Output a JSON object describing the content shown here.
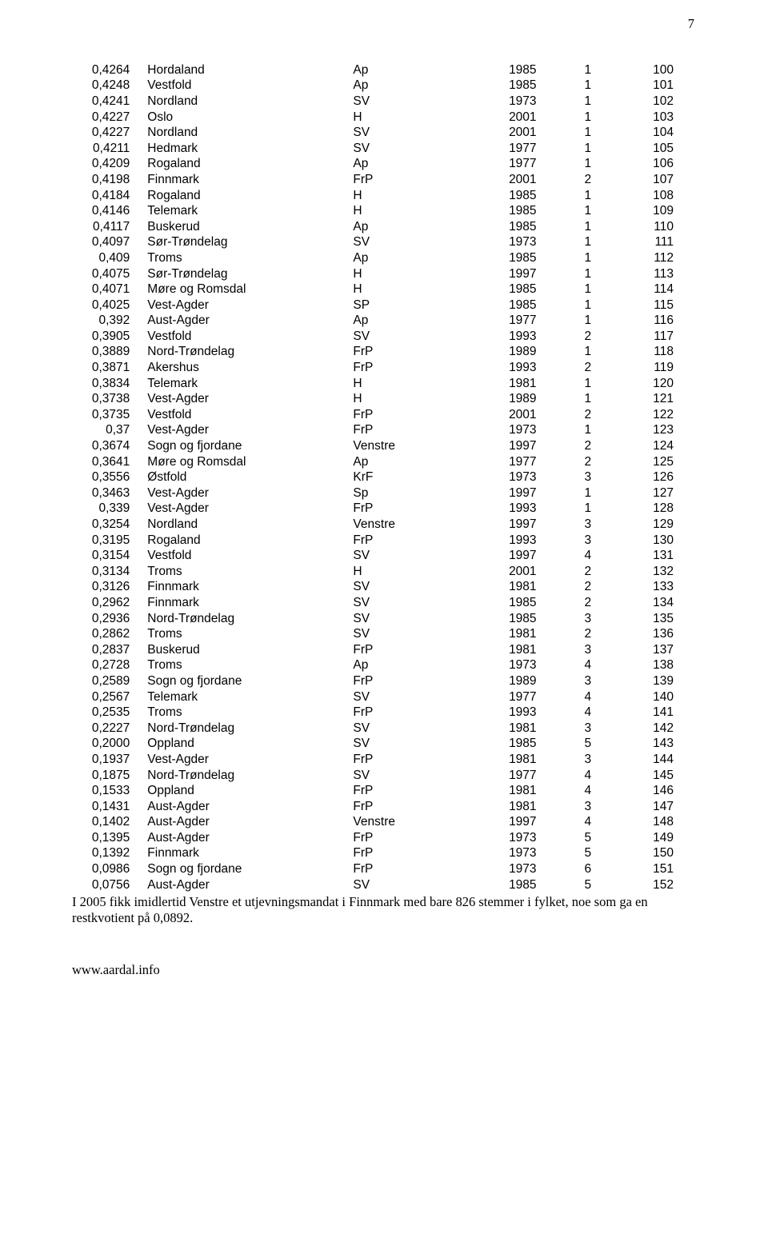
{
  "page_number": "7",
  "rows": [
    [
      "0,4264",
      "Hordaland",
      "Ap",
      "1985",
      "1",
      "100"
    ],
    [
      "0,4248",
      "Vestfold",
      "Ap",
      "1985",
      "1",
      "101"
    ],
    [
      "0,4241",
      "Nordland",
      "SV",
      "1973",
      "1",
      "102"
    ],
    [
      "0,4227",
      "Oslo",
      "H",
      "2001",
      "1",
      "103"
    ],
    [
      "0,4227",
      "Nordland",
      "SV",
      "2001",
      "1",
      "104"
    ],
    [
      "0,4211",
      "Hedmark",
      "SV",
      "1977",
      "1",
      "105"
    ],
    [
      "0,4209",
      "Rogaland",
      "Ap",
      "1977",
      "1",
      "106"
    ],
    [
      "0,4198",
      "Finnmark",
      "FrP",
      "2001",
      "2",
      "107"
    ],
    [
      "0,4184",
      "Rogaland",
      "H",
      "1985",
      "1",
      "108"
    ],
    [
      "0,4146",
      "Telemark",
      "H",
      "1985",
      "1",
      "109"
    ],
    [
      "0,4117",
      "Buskerud",
      "Ap",
      "1985",
      "1",
      "110"
    ],
    [
      "0,4097",
      "Sør-Trøndelag",
      "SV",
      "1973",
      "1",
      "111"
    ],
    [
      "0,409",
      "Troms",
      "Ap",
      "1985",
      "1",
      "112"
    ],
    [
      "0,4075",
      "Sør-Trøndelag",
      "H",
      "1997",
      "1",
      "113"
    ],
    [
      "0,4071",
      "Møre og Romsdal",
      "H",
      "1985",
      "1",
      "114"
    ],
    [
      "0,4025",
      "Vest-Agder",
      "SP",
      "1985",
      "1",
      "115"
    ],
    [
      "0,392",
      "Aust-Agder",
      "Ap",
      "1977",
      "1",
      "116"
    ],
    [
      "0,3905",
      "Vestfold",
      "SV",
      "1993",
      "2",
      "117"
    ],
    [
      "0,3889",
      "Nord-Trøndelag",
      "FrP",
      "1989",
      "1",
      "118"
    ],
    [
      "0,3871",
      "Akershus",
      "FrP",
      "1993",
      "2",
      "119"
    ],
    [
      "0,3834",
      "Telemark",
      "H",
      "1981",
      "1",
      "120"
    ],
    [
      "0,3738",
      "Vest-Agder",
      "H",
      "1989",
      "1",
      "121"
    ],
    [
      "0,3735",
      "Vestfold",
      "FrP",
      "2001",
      "2",
      "122"
    ],
    [
      "0,37",
      "Vest-Agder",
      "FrP",
      "1973",
      "1",
      "123"
    ],
    [
      "0,3674",
      "Sogn og fjordane",
      "Venstre",
      "1997",
      "2",
      "124"
    ],
    [
      "0,3641",
      "Møre og Romsdal",
      "Ap",
      "1977",
      "2",
      "125"
    ],
    [
      "0,3556",
      "Østfold",
      "KrF",
      "1973",
      "3",
      "126"
    ],
    [
      "0,3463",
      "Vest-Agder",
      "Sp",
      "1997",
      "1",
      "127"
    ],
    [
      "0,339",
      "Vest-Agder",
      "FrP",
      "1993",
      "1",
      "128"
    ],
    [
      "0,3254",
      "Nordland",
      "Venstre",
      "1997",
      "3",
      "129"
    ],
    [
      "0,3195",
      "Rogaland",
      "FrP",
      "1993",
      "3",
      "130"
    ],
    [
      "0,3154",
      "Vestfold",
      "SV",
      "1997",
      "4",
      "131"
    ],
    [
      "0,3134",
      "Troms",
      "H",
      "2001",
      "2",
      "132"
    ],
    [
      "0,3126",
      "Finnmark",
      "SV",
      "1981",
      "2",
      "133"
    ],
    [
      "0,2962",
      "Finnmark",
      "SV",
      "1985",
      "2",
      "134"
    ],
    [
      "0,2936",
      "Nord-Trøndelag",
      "SV",
      "1985",
      "3",
      "135"
    ],
    [
      "0,2862",
      "Troms",
      "SV",
      "1981",
      "2",
      "136"
    ],
    [
      "0,2837",
      "Buskerud",
      "FrP",
      "1981",
      "3",
      "137"
    ],
    [
      "0,2728",
      "Troms",
      "Ap",
      "1973",
      "4",
      "138"
    ],
    [
      "0,2589",
      "Sogn og fjordane",
      "FrP",
      "1989",
      "3",
      "139"
    ],
    [
      "0,2567",
      "Telemark",
      "SV",
      "1977",
      "4",
      "140"
    ],
    [
      "0,2535",
      "Troms",
      "FrP",
      "1993",
      "4",
      "141"
    ],
    [
      "0,2227",
      "Nord-Trøndelag",
      "SV",
      "1981",
      "3",
      "142"
    ],
    [
      "0,2000",
      "Oppland",
      "SV",
      "1985",
      "5",
      "143"
    ],
    [
      "0,1937",
      "Vest-Agder",
      "FrP",
      "1981",
      "3",
      "144"
    ],
    [
      "0,1875",
      "Nord-Trøndelag",
      "SV",
      "1977",
      "4",
      "145"
    ],
    [
      "0,1533",
      "Oppland",
      "FrP",
      "1981",
      "4",
      "146"
    ],
    [
      "0,1431",
      "Aust-Agder",
      "FrP",
      "1981",
      "3",
      "147"
    ],
    [
      "0,1402",
      "Aust-Agder",
      "Venstre",
      "1997",
      "4",
      "148"
    ],
    [
      "0,1395",
      "Aust-Agder",
      "FrP",
      "1973",
      "5",
      "149"
    ],
    [
      "0,1392",
      "Finnmark",
      "FrP",
      "1973",
      "5",
      "150"
    ],
    [
      "0,0986",
      "Sogn og fjordane",
      "FrP",
      "1973",
      "6",
      "151"
    ],
    [
      "0,0756",
      "Aust-Agder",
      "SV",
      "1985",
      "5",
      "152"
    ]
  ],
  "paragraph": "I 2005 fikk imidlertid Venstre et utjevningsmandat i Finnmark med bare 826 stemmer i fylket, noe som ga en restkvotient på 0,0892.",
  "footer": "www.aardal.info",
  "style": {
    "body_font": "Times New Roman",
    "table_font": "Arial",
    "table_font_size_pt": 11.5,
    "body_font_size_pt": 12,
    "background": "#ffffff",
    "text_color": "#000000"
  }
}
